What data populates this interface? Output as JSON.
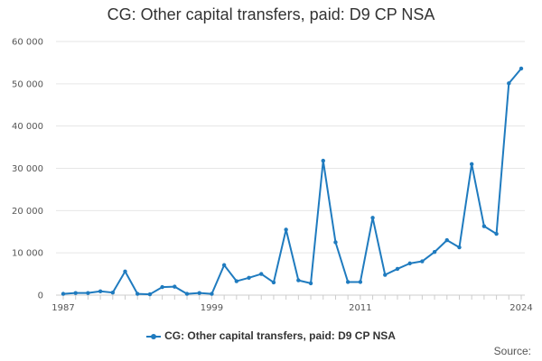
{
  "chart_data": {
    "type": "line",
    "title": "CG: Other capital transfers, paid: D9 CP NSA",
    "xlabel": "",
    "ylabel": "",
    "x": [
      1987,
      1988,
      1989,
      1990,
      1991,
      1992,
      1993,
      1994,
      1995,
      1996,
      1997,
      1998,
      1999,
      2000,
      2001,
      2002,
      2003,
      2004,
      2005,
      2006,
      2007,
      2008,
      2009,
      2010,
      2011,
      2012,
      2013,
      2014,
      2015,
      2016,
      2017,
      2018,
      2019,
      2020,
      2021,
      2022,
      2023,
      2024
    ],
    "series": [
      {
        "name": "CG: Other capital transfers, paid: D9 CP NSA",
        "color": "#1f7bbf",
        "values": [
          300,
          500,
          500,
          900,
          600,
          5600,
          300,
          200,
          1900,
          2000,
          300,
          500,
          300,
          7100,
          3300,
          4100,
          5000,
          3000,
          15500,
          3500,
          2800,
          31800,
          12500,
          3100,
          3100,
          18300,
          4800,
          6200,
          7500,
          8000,
          10200,
          13000,
          11300,
          31000,
          16300,
          14500,
          50100,
          53600
        ]
      }
    ],
    "yticks": [
      "0",
      "10 000",
      "20 000",
      "30 000",
      "40 000",
      "50 000",
      "60 000"
    ],
    "ytick_values": [
      0,
      10000,
      20000,
      30000,
      40000,
      50000,
      60000
    ],
    "xticks": [
      "1987",
      "1999",
      "2011",
      "2024"
    ],
    "xtick_values": [
      1987,
      1999,
      2011,
      2024
    ],
    "ylim": [
      0,
      60000
    ],
    "xlim": [
      1987,
      2024
    ],
    "grid": true,
    "legend": "bottom-center"
  },
  "legend_label": "CG: Other capital transfers, paid: D9 CP NSA",
  "source_label": "Source:"
}
